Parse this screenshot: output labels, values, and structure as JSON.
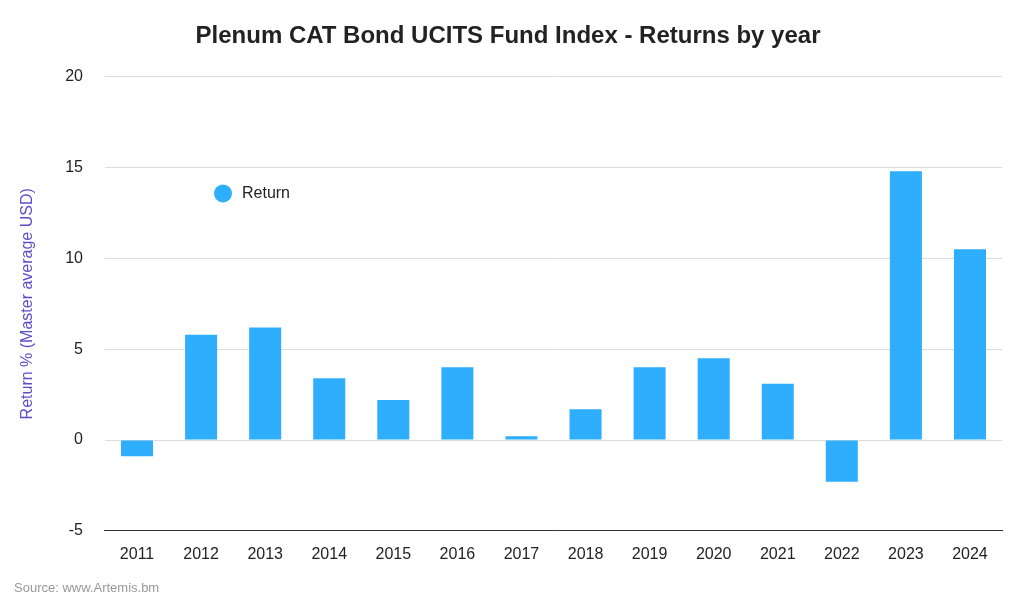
{
  "chart_data": {
    "type": "bar",
    "title": "Plenum CAT Bond UCITS Fund Index - Returns by year",
    "y_label": "Return % (Master average USD)",
    "source": "Source: www.Artemis.bm",
    "categories": [
      "2011",
      "2012",
      "2013",
      "2014",
      "2015",
      "2016",
      "2017",
      "2018",
      "2019",
      "2020",
      "2021",
      "2022",
      "2023",
      "2024"
    ],
    "series": [
      {
        "name": "Return",
        "color": "#2eaefc",
        "values": [
          -0.9,
          5.8,
          6.2,
          3.4,
          2.2,
          4.0,
          0.2,
          1.7,
          4.0,
          4.5,
          3.1,
          -2.3,
          14.8,
          10.5
        ]
      }
    ],
    "ylim": [
      -5,
      20
    ],
    "yticks": [
      -5,
      0,
      5,
      10,
      15,
      20
    ],
    "grid": true,
    "legend": "upper left"
  }
}
